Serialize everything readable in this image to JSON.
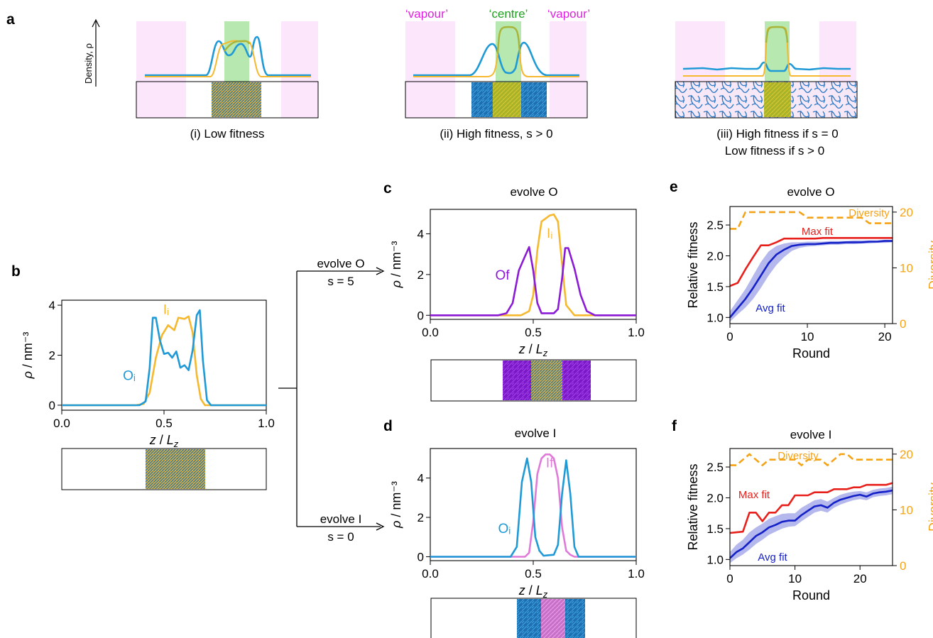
{
  "panels": {
    "a": {
      "letter": "a",
      "density_label": "Density, ρ",
      "region_labels": {
        "vapour": "‘vapour’",
        "centre": "‘centre’"
      },
      "captions": [
        "(i) Low fitness",
        "(ii) High fitness, s > 0",
        "(iii) High fitness if s = 0",
        "Low fitness if s > 0"
      ]
    },
    "b": {
      "letter": "b"
    },
    "c": {
      "letter": "c",
      "title": "evolve O"
    },
    "d": {
      "letter": "d",
      "title": "evolve I"
    },
    "e": {
      "letter": "e",
      "title": "evolve O"
    },
    "f": {
      "letter": "f",
      "title": "evolve I"
    }
  },
  "branches": {
    "top": {
      "label": "evolve O",
      "s": "s = 5"
    },
    "bottom": {
      "label": "evolve I",
      "s": "s = 0"
    }
  },
  "colors": {
    "O": "#1f9ad6",
    "I": "#f5b82e",
    "Of": "#8b1ad6",
    "If": "#e07ad8",
    "olive": "#a8b53a",
    "teal": "#2aa0b0",
    "max_fit": "#e8201c",
    "avg_fit": "#1420c8",
    "avg_band": "#b4b8ec",
    "diversity": "#f5a316",
    "vapour_fill": "#fbe6fb",
    "centre_fill": "#b6e8b0",
    "vapour_text": "#e020e0",
    "centre_text": "#20a020"
  },
  "chart_data": [
    {
      "id": "b",
      "type": "line",
      "xlabel": "z / Lz",
      "ylabel": "ρ / nm⁻³",
      "xlim": [
        0.0,
        1.0
      ],
      "ylim": [
        -0.2,
        4.2
      ],
      "xticks": [
        "0.0",
        "0.5",
        "1.0"
      ],
      "yticks": [
        "0",
        "2",
        "4"
      ],
      "series": [
        {
          "name": "Iᵢ",
          "color_key": "I",
          "x": [
            0.0,
            0.36,
            0.4,
            0.43,
            0.46,
            0.49,
            0.52,
            0.55,
            0.57,
            0.6,
            0.62,
            0.64,
            0.66,
            0.68,
            0.7,
            1.0
          ],
          "y": [
            0.0,
            0.0,
            0.05,
            0.5,
            1.9,
            2.8,
            3.2,
            3.0,
            3.5,
            3.45,
            3.55,
            2.9,
            1.2,
            0.25,
            0.0,
            0.0
          ]
        },
        {
          "name": "Oᵢ",
          "color_key": "O",
          "x": [
            0.0,
            0.38,
            0.41,
            0.43,
            0.445,
            0.46,
            0.48,
            0.5,
            0.52,
            0.54,
            0.56,
            0.58,
            0.6,
            0.62,
            0.64,
            0.66,
            0.675,
            0.69,
            0.71,
            0.73,
            1.0
          ],
          "y": [
            0.0,
            0.0,
            0.15,
            1.5,
            3.5,
            3.5,
            2.6,
            2.05,
            2.1,
            1.9,
            2.15,
            1.5,
            1.6,
            1.4,
            2.2,
            3.6,
            3.8,
            1.8,
            0.2,
            0.0,
            0.0
          ]
        }
      ]
    },
    {
      "id": "c",
      "type": "line",
      "xlabel": "z / Lz",
      "ylabel": "ρ / nm⁻³",
      "xlim": [
        0.0,
        1.0
      ],
      "ylim": [
        -0.2,
        5.2
      ],
      "xticks": [
        "0.0",
        "0.5",
        "1.0"
      ],
      "yticks": [
        "0",
        "2",
        "4"
      ],
      "series": [
        {
          "name": "Iᵢ",
          "color_key": "I",
          "x": [
            0.0,
            0.44,
            0.48,
            0.5,
            0.52,
            0.54,
            0.56,
            0.58,
            0.6,
            0.62,
            0.64,
            0.66,
            0.7,
            1.0
          ],
          "y": [
            0.0,
            0.0,
            0.2,
            1.0,
            3.2,
            4.6,
            4.75,
            4.9,
            4.95,
            4.6,
            2.5,
            0.5,
            0.0,
            0.0
          ]
        },
        {
          "name": "Of",
          "color_key": "Of",
          "x": [
            0.0,
            0.33,
            0.37,
            0.4,
            0.43,
            0.46,
            0.48,
            0.5,
            0.52,
            0.54,
            0.6,
            0.62,
            0.64,
            0.655,
            0.67,
            0.7,
            0.73,
            0.76,
            0.8,
            1.0
          ],
          "y": [
            0.0,
            0.0,
            0.1,
            0.6,
            2.2,
            2.9,
            3.35,
            2.2,
            0.6,
            0.1,
            0.1,
            0.3,
            1.8,
            3.3,
            3.3,
            2.3,
            1.0,
            0.2,
            0.0,
            0.0
          ]
        }
      ]
    },
    {
      "id": "d",
      "type": "line",
      "xlabel": "z / Lz",
      "ylabel": "ρ / nm⁻³",
      "xlim": [
        0.0,
        1.0
      ],
      "ylim": [
        -0.2,
        5.5
      ],
      "xticks": [
        "0.0",
        "0.5",
        "1.0"
      ],
      "yticks": [
        "0",
        "2",
        "4"
      ],
      "series": [
        {
          "name": "If",
          "color_key": "If",
          "x": [
            0.0,
            0.46,
            0.48,
            0.5,
            0.52,
            0.54,
            0.56,
            0.58,
            0.6,
            0.62,
            0.64,
            0.66,
            0.68,
            0.7,
            1.0
          ],
          "y": [
            0.0,
            0.0,
            0.2,
            1.8,
            4.2,
            5.0,
            5.2,
            5.2,
            5.0,
            4.0,
            1.5,
            0.3,
            0.1,
            0.0,
            0.0
          ]
        },
        {
          "name": "Oᵢ",
          "color_key": "O",
          "x": [
            0.0,
            0.39,
            0.42,
            0.445,
            0.47,
            0.49,
            0.51,
            0.53,
            0.55,
            0.6,
            0.62,
            0.64,
            0.66,
            0.68,
            0.7,
            0.72,
            1.0
          ],
          "y": [
            0.0,
            0.0,
            0.5,
            3.8,
            5.0,
            3.8,
            1.0,
            0.3,
            0.05,
            0.1,
            0.6,
            3.2,
            4.9,
            3.2,
            0.5,
            0.0,
            0.0
          ]
        }
      ]
    },
    {
      "id": "e",
      "type": "line",
      "xlabel": "Round",
      "ylabel": "Relative fitness",
      "ylabel_right": "Diversity",
      "xlim": [
        0,
        21
      ],
      "ylim": [
        0.9,
        2.8
      ],
      "ylim_right": [
        0,
        21
      ],
      "xticks": [
        "0",
        "10",
        "20"
      ],
      "yticks": [
        "1.0",
        "1.5",
        "2.0",
        "2.5"
      ],
      "yticks_right": [
        "0",
        "10",
        "20"
      ],
      "series": [
        {
          "name": "Max fit",
          "color_key": "max_fit",
          "axis": "left",
          "x": [
            0,
            1,
            2,
            3,
            4,
            5,
            6,
            7,
            8,
            9,
            10,
            11,
            12,
            13,
            14,
            15,
            16,
            17,
            18,
            19,
            20,
            21
          ],
          "y": [
            1.51,
            1.56,
            1.78,
            1.98,
            2.17,
            2.17,
            2.22,
            2.28,
            2.28,
            2.28,
            2.28,
            2.28,
            2.29,
            2.29,
            2.29,
            2.29,
            2.29,
            2.29,
            2.29,
            2.29,
            2.29,
            2.29
          ]
        },
        {
          "name": "Avg fit",
          "color_key": "avg_fit",
          "axis": "left",
          "x": [
            0,
            1,
            2,
            3,
            4,
            5,
            6,
            7,
            8,
            9,
            10,
            11,
            12,
            13,
            14,
            15,
            16,
            17,
            18,
            19,
            20,
            21
          ],
          "y": [
            1.0,
            1.15,
            1.3,
            1.48,
            1.68,
            1.88,
            2.02,
            2.1,
            2.16,
            2.18,
            2.19,
            2.19,
            2.2,
            2.21,
            2.21,
            2.22,
            2.22,
            2.22,
            2.23,
            2.23,
            2.24,
            2.24
          ],
          "band_lo": [
            0.93,
            1.05,
            1.16,
            1.3,
            1.48,
            1.68,
            1.85,
            1.98,
            2.08,
            2.13,
            2.15,
            2.16,
            2.17,
            2.18,
            2.18,
            2.19,
            2.19,
            2.2,
            2.2,
            2.21,
            2.21,
            2.22
          ],
          "band_hi": [
            1.1,
            1.28,
            1.46,
            1.68,
            1.9,
            2.07,
            2.16,
            2.2,
            2.22,
            2.22,
            2.23,
            2.23,
            2.23,
            2.24,
            2.24,
            2.24,
            2.25,
            2.25,
            2.25,
            2.25,
            2.26,
            2.26
          ]
        },
        {
          "name": "Diversity",
          "color_key": "diversity",
          "axis": "right",
          "dashed": true,
          "x": [
            0,
            1,
            2,
            3,
            4,
            5,
            6,
            7,
            8,
            9,
            10,
            11,
            12,
            13,
            14,
            15,
            16,
            17,
            18,
            19,
            20,
            21
          ],
          "y": [
            17,
            17,
            20,
            20,
            20,
            20,
            20,
            20,
            20,
            20,
            19,
            19,
            19,
            19,
            19,
            19,
            19,
            19,
            18,
            18,
            18,
            18
          ]
        }
      ]
    },
    {
      "id": "f",
      "type": "line",
      "xlabel": "Round",
      "ylabel": "Relative fitness",
      "ylabel_right": "Diversity",
      "xlim": [
        0,
        25
      ],
      "ylim": [
        0.9,
        2.8
      ],
      "ylim_right": [
        0,
        21
      ],
      "xticks": [
        "0",
        "10",
        "20"
      ],
      "yticks": [
        "1.0",
        "1.5",
        "2.0",
        "2.5"
      ],
      "yticks_right": [
        "0",
        "10",
        "20"
      ],
      "series": [
        {
          "name": "Max fit",
          "color_key": "max_fit",
          "axis": "left",
          "x": [
            0,
            1,
            2,
            3,
            4,
            5,
            6,
            7,
            8,
            9,
            10,
            11,
            12,
            13,
            14,
            15,
            16,
            17,
            18,
            19,
            20,
            21,
            22,
            23,
            24,
            25
          ],
          "y": [
            1.43,
            1.44,
            1.45,
            1.76,
            1.76,
            1.62,
            1.76,
            1.76,
            1.88,
            1.88,
            2.04,
            2.04,
            2.04,
            2.09,
            2.09,
            2.09,
            2.14,
            2.14,
            2.14,
            2.17,
            2.17,
            2.21,
            2.21,
            2.21,
            2.21,
            2.24
          ]
        },
        {
          "name": "Avg fit",
          "color_key": "avg_fit",
          "axis": "left",
          "x": [
            0,
            1,
            2,
            3,
            4,
            5,
            6,
            7,
            8,
            9,
            10,
            11,
            12,
            13,
            14,
            15,
            16,
            17,
            18,
            19,
            20,
            21,
            22,
            23,
            24,
            25
          ],
          "y": [
            1.02,
            1.12,
            1.18,
            1.28,
            1.38,
            1.44,
            1.52,
            1.56,
            1.61,
            1.63,
            1.63,
            1.72,
            1.79,
            1.86,
            1.88,
            1.84,
            1.92,
            1.97,
            2.0,
            2.03,
            2.05,
            2.02,
            2.07,
            2.09,
            2.1,
            2.12
          ],
          "band_lo": [
            0.94,
            1.02,
            1.08,
            1.16,
            1.25,
            1.32,
            1.4,
            1.45,
            1.5,
            1.53,
            1.54,
            1.62,
            1.69,
            1.76,
            1.79,
            1.76,
            1.84,
            1.89,
            1.93,
            1.96,
            1.98,
            1.96,
            2.01,
            2.03,
            2.04,
            2.06
          ],
          "band_hi": [
            1.12,
            1.24,
            1.32,
            1.44,
            1.52,
            1.58,
            1.66,
            1.7,
            1.74,
            1.75,
            1.75,
            1.84,
            1.9,
            1.96,
            1.98,
            1.94,
            2.0,
            2.05,
            2.08,
            2.1,
            2.11,
            2.09,
            2.13,
            2.15,
            2.16,
            2.18
          ]
        },
        {
          "name": "Diversity",
          "color_key": "diversity",
          "axis": "right",
          "dashed": true,
          "x": [
            0,
            1,
            2,
            3,
            4,
            5,
            6,
            7,
            8,
            9,
            10,
            11,
            12,
            13,
            14,
            15,
            16,
            17,
            18,
            19,
            20,
            21,
            22,
            23,
            24,
            25
          ],
          "y": [
            18,
            18,
            19,
            20,
            19,
            18,
            19,
            19,
            19,
            19,
            19,
            18,
            19,
            19,
            19,
            18,
            19,
            20,
            20,
            19,
            19,
            19,
            19,
            19,
            19,
            19
          ]
        }
      ]
    }
  ]
}
